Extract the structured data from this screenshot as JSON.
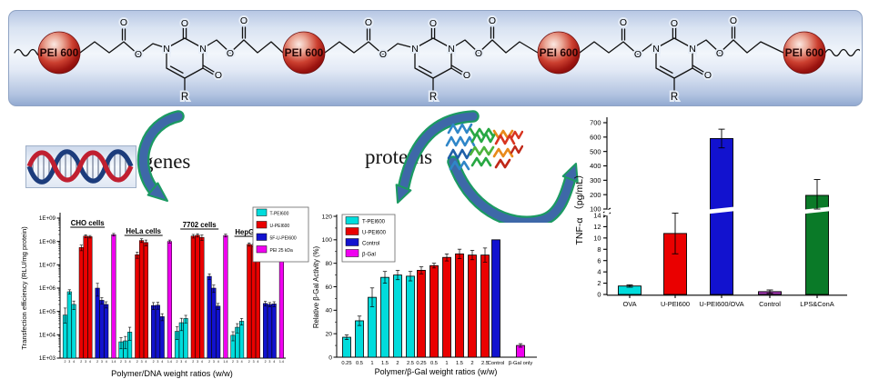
{
  "scheme": {
    "sphere_label": "PEI 600",
    "oxygen": "O",
    "nitrogen": "N",
    "r_group": "R"
  },
  "middle": {
    "genes_label": "genes",
    "proteins_label": "proteins"
  },
  "chart_data": [
    {
      "id": "transfection",
      "type": "bar",
      "yscale": "log",
      "ylabel": "Transfection efficiency (RLU/mg protein)",
      "xlabel": "Polymer/DNA weight ratios (w/w)",
      "ylim": [
        1000,
        1000000000
      ],
      "yticks": [
        "1E+03",
        "1E+04",
        "1E+05",
        "1E+06",
        "1E+07",
        "1E+08",
        "1E+09"
      ],
      "legend_position": "top-right",
      "series_meta": [
        {
          "name": "T-PEI600",
          "color": "#00dcdc"
        },
        {
          "name": "U-PEI600",
          "color": "#ea0000"
        },
        {
          "name": "5F-U-PEI600",
          "color": "#1212cf"
        },
        {
          "name": "PEI 25 kDa",
          "color": "#f000f0"
        }
      ],
      "ratio_labels": [
        [
          "2",
          "3",
          "4"
        ],
        [
          "2",
          "3",
          "4"
        ],
        [
          "2",
          "3",
          "4"
        ],
        [
          "1.4"
        ]
      ],
      "groups": [
        {
          "label": "CHO cells",
          "values": [
            [
              70000.0,
              700000.0,
              200000.0
            ],
            [
              55000000.0,
              170000000.0,
              160000000.0
            ],
            [
              1000000.0,
              300000.0,
              200000.0
            ],
            [
              195000000.0
            ]
          ],
          "errors": [
            [
              70000.0,
              150000.0,
              80000.0
            ],
            [
              15000000.0,
              25000000.0,
              20000000.0
            ],
            [
              600000.0,
              90000.0,
              60000.0
            ],
            [
              25000000.0
            ]
          ]
        },
        {
          "label": "HeLa cells",
          "values": [
            [
              5000.0,
              5500.0,
              13000.0
            ],
            [
              27000000.0,
              110000000.0,
              90000000.0
            ],
            [
              180000.0,
              185000.0,
              60000.0
            ],
            [
              100000000.0
            ]
          ],
          "errors": [
            [
              2500.0,
              3000.0,
              8000.0
            ],
            [
              8000000.0,
              20000000.0,
              25000000.0
            ],
            [
              60000.0,
              60000.0,
              20000.0
            ],
            [
              15000000.0
            ]
          ]
        },
        {
          "label": "7702 cells",
          "values": [
            [
              14000.0,
              33000.0,
              50000.0
            ],
            [
              170000000.0,
              185000000.0,
              150000000.0
            ],
            [
              3200000.0,
              1000000.0,
              170000.0
            ],
            [
              180000000.0
            ]
          ],
          "errors": [
            [
              8000.0,
              18000.0,
              18000.0
            ],
            [
              30000000.0,
              30000000.0,
              40000000.0
            ],
            [
              900000.0,
              350000.0,
              50000.0
            ],
            [
              25000000.0
            ]
          ]
        },
        {
          "label": "HepG2 cells",
          "values": [
            [
              9500.0,
              21000.0,
              38000.0
            ],
            [
              75000000.0,
              70000000.0,
              55000000.0
            ],
            [
              220000.0,
              200000.0,
              210000.0
            ],
            [
              95000000.0
            ]
          ],
          "errors": [
            [
              4000.0,
              9000.0,
              12000.0
            ],
            [
              12000000.0,
              10000000.0,
              9000000.0
            ],
            [
              50000.0,
              40000.0,
              50000.0
            ],
            [
              15000000.0
            ]
          ]
        }
      ]
    },
    {
      "id": "bgal",
      "type": "bar",
      "yscale": "linear",
      "ylabel": "Relative β-Gal Activity (%)",
      "xlabel": "Polymer/β-Gal weight ratios (w/w)",
      "ylim": [
        0,
        120
      ],
      "yticks": [
        0,
        20,
        40,
        60,
        80,
        100,
        120
      ],
      "legend_position": "top-left",
      "ratio_labels": [
        "0.25",
        "0.5",
        "1",
        "1.5",
        "2",
        "2.5"
      ],
      "series": [
        {
          "name": "T-PEI600",
          "color": "#00dcdc",
          "values": [
            17,
            31,
            51,
            68,
            70,
            69
          ],
          "errors": [
            2,
            4,
            8,
            5,
            4,
            4
          ]
        },
        {
          "name": "U-PEI600",
          "color": "#ea0000",
          "values": [
            74,
            78,
            85,
            88,
            87,
            87
          ],
          "errors": [
            3,
            2,
            3,
            4,
            4,
            6
          ]
        }
      ],
      "extra_bars": [
        {
          "label": "Control",
          "legend": "Control",
          "color": "#1212cf",
          "value": 100,
          "error": 0
        },
        {
          "label": "β-Gal only",
          "legend": "β-Gal",
          "color": "#f000f0",
          "value": 10,
          "error": 1.5
        }
      ]
    },
    {
      "id": "tnf",
      "type": "bar-broken-axis",
      "ylabel": "TNF-α （pg/mL）",
      "xlabel": "",
      "lower_ylim": [
        0,
        14
      ],
      "lower_yticks": [
        0,
        2,
        4,
        6,
        8,
        10,
        12,
        14
      ],
      "upper_ylim": [
        100,
        700
      ],
      "upper_yticks": [
        100,
        200,
        300,
        400,
        500,
        600,
        700
      ],
      "categories": [
        "OVA",
        "U-PEI600",
        "U-PEI600/OVA",
        "Control",
        "LPS&ConA"
      ],
      "values": [
        1.5,
        10.8,
        590,
        0.5,
        195
      ],
      "errors": [
        0.2,
        3.6,
        65,
        0.3,
        110
      ],
      "colors": [
        "#00dcdc",
        "#ea0000",
        "#1212cf",
        "#a238b2",
        "#0a7a28"
      ]
    }
  ]
}
